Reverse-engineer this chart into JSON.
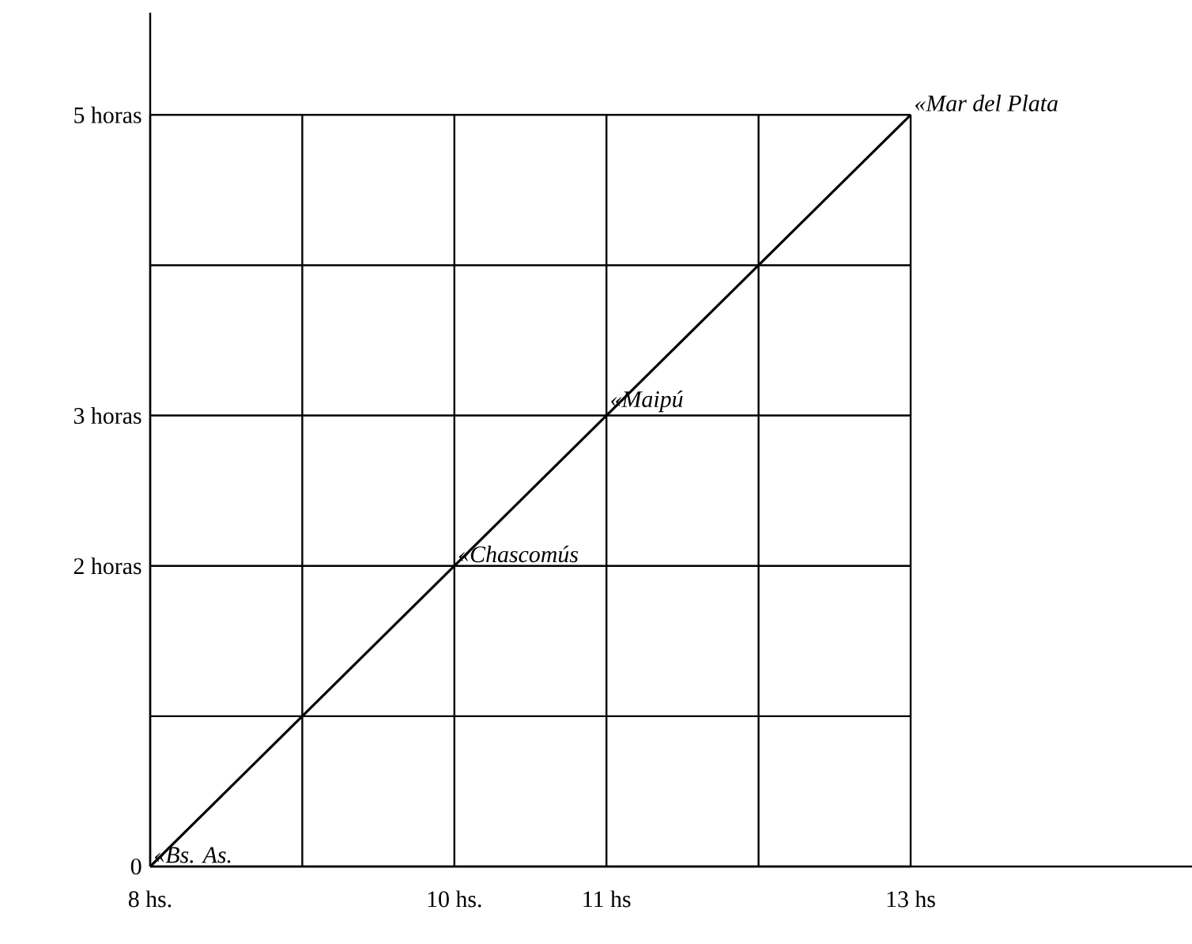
{
  "chart_data": {
    "type": "line",
    "x": [
      8,
      13
    ],
    "series": [
      {
        "color": "#000000",
        "values": [
          0,
          5
        ]
      }
    ],
    "xlim": [
      8,
      14.85
    ],
    "ylim": [
      0,
      5.68
    ],
    "xticks": [
      {
        "value": 8,
        "label": "8 hs."
      },
      {
        "value": 9,
        "label": null
      },
      {
        "value": 10,
        "label": "10 hs."
      },
      {
        "value": 11,
        "label": "11 hs"
      },
      {
        "value": 12,
        "label": null
      },
      {
        "value": 13,
        "label": "13 hs"
      }
    ],
    "yticks": [
      {
        "value": 0,
        "label": "0"
      },
      {
        "value": 1,
        "label": null
      },
      {
        "value": 2,
        "label": "2 horas"
      },
      {
        "value": 3,
        "label": "3 horas"
      },
      {
        "value": 4,
        "label": null
      },
      {
        "value": 5,
        "label": "5 horas"
      }
    ],
    "grid": true,
    "marker": "none",
    "line_style": "solid",
    "annotations": [
      {
        "text": "«Bs. As.",
        "x": 8,
        "y": 0
      },
      {
        "text": "«Chascomús",
        "x": 10,
        "y": 2
      },
      {
        "text": "«Maipú",
        "x": 11,
        "y": 3
      },
      {
        "text": "«Mar del Plata",
        "x": 13,
        "y": 5
      }
    ]
  }
}
